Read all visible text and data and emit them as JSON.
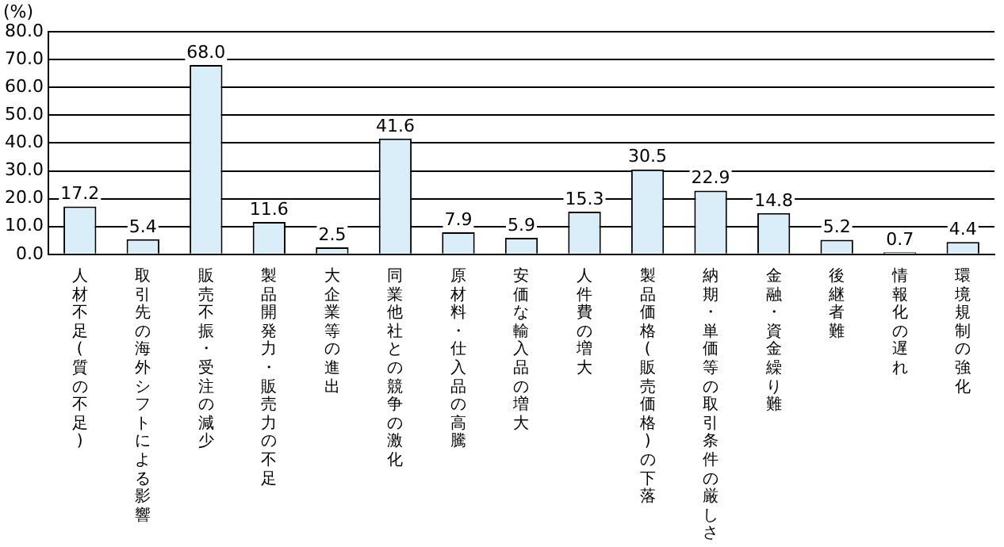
{
  "chart_data": {
    "type": "bar",
    "ylabel": "(%)",
    "categories": [
      "人材不足(質の不足)",
      "取引先の海外シフトによる影響",
      "販売不振・受注の減少",
      "製品開発力・販売力の不足",
      "大企業等の進出",
      "同業他社との競争の激化",
      "原材料・仕入品の高騰",
      "安価な輸入品の増大",
      "人件費の増大",
      "製品価格(販売価格)の下落",
      "納期・単価等の取引条件の厳しさ",
      "金融・資金繰り難",
      "後継者難",
      "情報化の遅れ",
      "環境規制の強化"
    ],
    "values": [
      17.2,
      5.4,
      68.0,
      11.6,
      2.5,
      41.6,
      7.9,
      5.9,
      15.3,
      30.5,
      22.9,
      14.8,
      5.2,
      0.7,
      4.4
    ],
    "value_labels": [
      "17.2",
      "5.4",
      "68.0",
      "11.6",
      "2.5",
      "41.6",
      "7.9",
      "5.9",
      "15.3",
      "30.5",
      "22.9",
      "14.8",
      "5.2",
      "0.7",
      "4.4"
    ],
    "color": "#daeefa",
    "ylim": [
      0,
      80
    ],
    "yticks": [
      {
        "value": 0,
        "label": "0.0"
      },
      {
        "value": 10,
        "label": "10.0"
      },
      {
        "value": 20,
        "label": "20.0"
      },
      {
        "value": 30,
        "label": "30.0"
      },
      {
        "value": 40,
        "label": "40.0"
      },
      {
        "value": 50,
        "label": "50.0"
      },
      {
        "value": 60,
        "label": "60.0"
      },
      {
        "value": 70,
        "label": "70.0"
      },
      {
        "value": 80,
        "label": "80.0"
      }
    ],
    "grid": "y",
    "legend": false
  }
}
